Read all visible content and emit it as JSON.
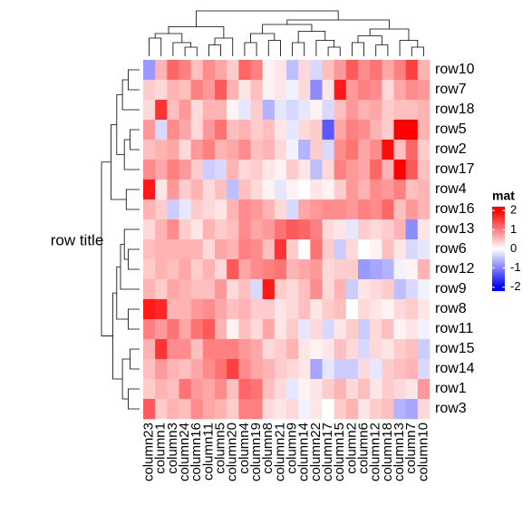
{
  "chart_data": {
    "type": "heatmap",
    "row_title": "row title",
    "legend_title": "mat",
    "rows": [
      "row10",
      "row7",
      "row18",
      "row5",
      "row2",
      "row17",
      "row4",
      "row16",
      "row13",
      "row6",
      "row12",
      "row9",
      "row8",
      "row11",
      "row15",
      "row14",
      "row1",
      "row3"
    ],
    "columns": [
      "column23",
      "column1",
      "column3",
      "column24",
      "column16",
      "column11",
      "column5",
      "column20",
      "column4",
      "column19",
      "column8",
      "column21",
      "column9",
      "column14",
      "column22",
      "column17",
      "column15",
      "column2",
      "column6",
      "column12",
      "column18",
      "column13",
      "column7",
      "column10"
    ],
    "values": [
      [
        -0.8,
        0.6,
        1.2,
        1.0,
        0.5,
        0.9,
        0.7,
        0.4,
        1.2,
        1.0,
        0.1,
        0.2,
        -0.5,
        0.3,
        -0.3,
        0.5,
        0.8,
        1.3,
        0.9,
        1.1,
        0.7,
        1.0,
        1.5,
        0.6
      ],
      [
        0.4,
        0.3,
        0.6,
        0.5,
        1.0,
        0.8,
        1.3,
        0.6,
        0.2,
        0.5,
        0.1,
        0.2,
        -0.1,
        0.3,
        -0.9,
        0.2,
        1.8,
        0.8,
        1.0,
        0.9,
        0.3,
        0.7,
        0.9,
        0.8
      ],
      [
        0.3,
        1.6,
        0.5,
        0.8,
        0.3,
        0.6,
        0.6,
        0.1,
        -0.2,
        0.4,
        -0.6,
        -0.2,
        -0.3,
        -0.2,
        0.1,
        -0.3,
        0.5,
        0.8,
        0.6,
        0.7,
        0.4,
        0.5,
        0.5,
        0.6
      ],
      [
        0.8,
        -0.3,
        0.9,
        0.7,
        0.3,
        0.8,
        1.1,
        0.5,
        0.6,
        0.4,
        0.5,
        0.2,
        -0.2,
        0.3,
        0.4,
        -1.3,
        0.7,
        1.0,
        0.9,
        0.6,
        0.4,
        2.0,
        2.0,
        0.6
      ],
      [
        0.5,
        0.6,
        0.7,
        0.3,
        0.8,
        1.0,
        0.6,
        0.7,
        0.9,
        0.5,
        0.6,
        0.3,
        -0.1,
        -0.6,
        0.4,
        -0.3,
        0.9,
        1.1,
        0.7,
        0.9,
        1.9,
        0.5,
        1.2,
        0.4
      ],
      [
        0.9,
        0.7,
        1.0,
        0.8,
        0.4,
        -0.4,
        -0.3,
        0.6,
        0.3,
        0.4,
        0.2,
        0.1,
        0.4,
        0.2,
        -0.5,
        0.3,
        1.0,
        0.8,
        0.7,
        1.2,
        0.6,
        2.0,
        1.3,
        0.5
      ],
      [
        1.8,
        0.2,
        0.8,
        0.4,
        0.6,
        0.3,
        0.5,
        -0.5,
        0.5,
        0.3,
        0.1,
        -0.2,
        0.1,
        0.0,
        0.2,
        0.1,
        0.4,
        0.8,
        0.6,
        0.9,
        0.8,
        1.0,
        0.5,
        0.6
      ],
      [
        0.6,
        0.4,
        -0.4,
        -0.2,
        0.4,
        0.3,
        0.2,
        0.6,
        0.9,
        0.8,
        0.6,
        0.3,
        -0.3,
        0.7,
        0.8,
        0.9,
        0.9,
        0.8,
        1.0,
        0.9,
        1.2,
        0.5,
        0.8,
        0.6
      ],
      [
        0.3,
        0.6,
        0.9,
        0.4,
        0.2,
        0.6,
        0.4,
        0.5,
        0.9,
        0.7,
        0.8,
        1.1,
        1.3,
        1.2,
        1.0,
        0.3,
        0.2,
        -0.2,
        0.4,
        0.3,
        0.4,
        0.6,
        -0.9,
        0.2
      ],
      [
        0.5,
        0.6,
        0.6,
        0.6,
        0.6,
        0.3,
        0.7,
        0.6,
        1.0,
        0.9,
        0.5,
        1.6,
        0.4,
        0.0,
        1.1,
        0.4,
        -0.4,
        0.3,
        0.0,
        0.1,
        0.5,
        0.2,
        -0.3,
        -0.2
      ],
      [
        0.4,
        0.6,
        0.5,
        0.7,
        0.4,
        0.6,
        0.3,
        1.3,
        0.7,
        0.9,
        1.0,
        1.1,
        0.6,
        0.7,
        0.8,
        0.3,
        0.4,
        0.4,
        -0.8,
        -0.7,
        -0.6,
        -0.1,
        0.1,
        0.6
      ],
      [
        0.6,
        0.4,
        0.7,
        0.6,
        0.5,
        0.5,
        0.8,
        0.3,
        0.5,
        -0.3,
        1.8,
        0.4,
        0.3,
        0.5,
        0.9,
        0.3,
        0.6,
        -0.4,
        0.2,
        0.3,
        0.4,
        -0.5,
        -0.3,
        -0.1
      ],
      [
        1.8,
        1.7,
        0.6,
        0.6,
        0.8,
        0.9,
        0.7,
        0.5,
        0.6,
        0.4,
        0.4,
        0.2,
        0.3,
        0.5,
        0.2,
        0.4,
        0.5,
        0.0,
        0.3,
        0.2,
        0.1,
        0.3,
        0.4,
        0.2
      ],
      [
        1.0,
        0.8,
        1.1,
        0.7,
        1.1,
        1.3,
        0.6,
        0.1,
        0.5,
        0.3,
        0.7,
        0.2,
        0.4,
        -0.2,
        0.3,
        -0.3,
        0.2,
        0.4,
        -0.4,
        0.3,
        0.5,
        0.1,
        0.2,
        -0.1
      ],
      [
        0.6,
        1.6,
        0.9,
        0.9,
        0.5,
        1.0,
        1.0,
        1.0,
        0.8,
        0.7,
        0.3,
        0.4,
        0.6,
        0.2,
        0.1,
        0.2,
        0.5,
        0.3,
        -0.3,
        0.3,
        0.2,
        0.4,
        0.5,
        -0.4
      ],
      [
        0.5,
        0.8,
        0.6,
        0.5,
        0.7,
        0.9,
        1.1,
        1.5,
        0.9,
        0.7,
        0.6,
        0.4,
        0.3,
        0.2,
        -0.7,
        -0.2,
        -0.4,
        -0.4,
        0.3,
        -0.2,
        0.4,
        0.5,
        0.6,
        -0.3
      ],
      [
        0.4,
        0.6,
        0.5,
        1.1,
        0.8,
        0.7,
        0.9,
        0.5,
        1.2,
        1.1,
        0.5,
        0.3,
        -0.2,
        0.1,
        0.2,
        0.4,
        0.6,
        0.3,
        0.5,
        0.2,
        0.4,
        0.3,
        0.2,
        0.8
      ],
      [
        1.3,
        0.4,
        0.6,
        0.5,
        0.9,
        0.7,
        0.6,
        0.4,
        1.0,
        1.0,
        0.3,
        0.2,
        0.3,
        -0.1,
        0.2,
        0.0,
        0.4,
        0.6,
        0.2,
        0.4,
        0.5,
        -0.6,
        -0.7,
        0.3
      ]
    ],
    "clim": [
      -2.2,
      2.2
    ],
    "colorbar_ticks": [
      2,
      1,
      0,
      -1,
      -2
    ]
  }
}
